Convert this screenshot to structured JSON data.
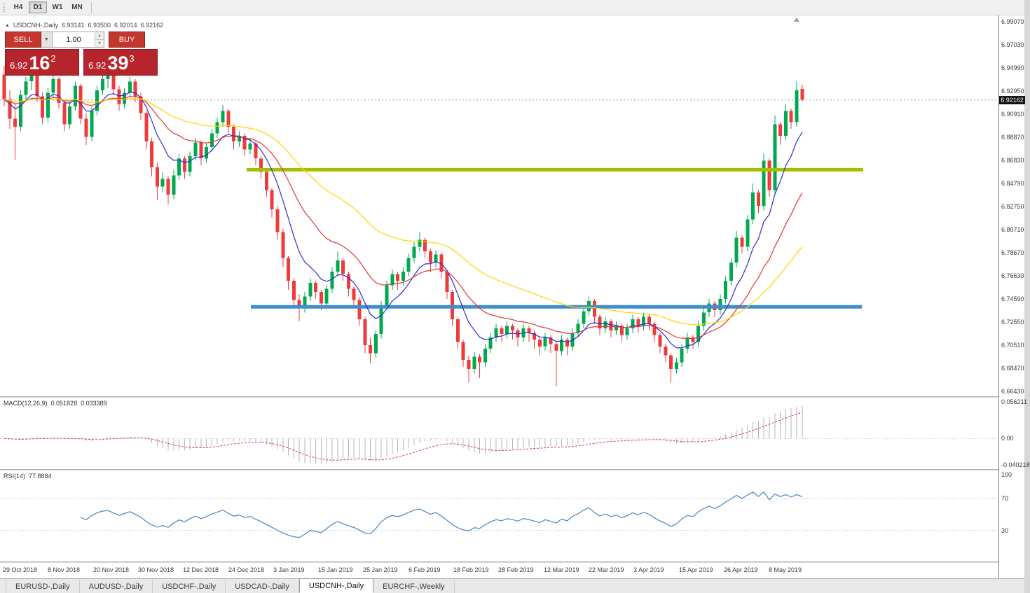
{
  "toolbar": {
    "timeframes": [
      {
        "label": "H4",
        "active": false
      },
      {
        "label": "D1",
        "active": true
      },
      {
        "label": "W1",
        "active": false
      },
      {
        "label": "MN",
        "active": false
      }
    ]
  },
  "symbol_header": {
    "collapse_icon": "▲",
    "symbol": "USDCNH-,Daily",
    "open": "6.93141",
    "high": "6.93500",
    "low": "6.92014",
    "close": "6.92162"
  },
  "trade_panel": {
    "sell_label": "SELL",
    "buy_label": "BUY",
    "volume": "1.00",
    "dropdown_icon": "▼",
    "spin_up_icon": "▲",
    "spin_down_icon": "▼",
    "bid": {
      "prefix": "6.92",
      "pips": "16",
      "sup": "2"
    },
    "ask": {
      "prefix": "6.92",
      "pips": "39",
      "sup": "3"
    }
  },
  "price_axis": {
    "labels": [
      "6.99070",
      "6.97030",
      "6.94990",
      "6.92950",
      "6.90910",
      "6.88870",
      "6.86830",
      "6.84790",
      "6.82750",
      "6.80710",
      "6.78670",
      "6.76630",
      "6.74590",
      "6.72550",
      "6.70510",
      "6.68470",
      "6.66430"
    ],
    "current_price": "6.92162"
  },
  "indicators": {
    "macd": {
      "label": "MACD(12,26,9)",
      "main_value": "0.051828",
      "signal_value": "0.033389",
      "axis_labels": [
        "0.056211",
        "0.00",
        "-0.040218"
      ],
      "scale_max": 0.056211,
      "scale_min": -0.040218,
      "histogram_color": "#b4b4b4",
      "signal_color": "#d04040"
    },
    "rsi": {
      "label": "RSI(14)",
      "value": "77.8884",
      "axis_labels": [
        "100",
        "70",
        "30"
      ],
      "levels": [
        70,
        30
      ],
      "line_color": "#4f81bd"
    }
  },
  "date_axis": [
    "29 Oct 2018",
    "8 Nov 2018",
    "20 Nov 2018",
    "30 Nov 2018",
    "12 Dec 2018",
    "24 Dec 2018",
    "3 Jan 2019",
    "15 Jan 2019",
    "25 Jan 2019",
    "6 Feb 2019",
    "18 Feb 2019",
    "28 Feb 2019",
    "12 Mar 2019",
    "22 Mar 2019",
    "3 Apr 2019",
    "15 Apr 2019",
    "26 Apr 2019",
    "8 May 2019"
  ],
  "tabs": {
    "items": [
      {
        "label": "EURUSD-,Daily",
        "active": false
      },
      {
        "label": "AUDUSD-,Daily",
        "active": false
      },
      {
        "label": "USDCHF-,Daily",
        "active": false
      },
      {
        "label": "USDCAD-,Daily",
        "active": false
      },
      {
        "label": "USDCNH-,Daily",
        "active": true
      },
      {
        "label": "EURCHF-,Weekly",
        "active": false
      }
    ]
  },
  "chart_data": {
    "type": "candlestick",
    "symbol": "USDCNH",
    "timeframe": "Daily",
    "y_range": [
      6.6643,
      6.9907
    ],
    "colors": {
      "up": "#00a94f",
      "down": "#ee3b3b"
    },
    "bid_line": 6.92162,
    "moving_averages": [
      {
        "period": 8,
        "color": "#2d2dd0"
      },
      {
        "period": 20,
        "color": "#e33636"
      },
      {
        "period": 45,
        "color": "#ffd400"
      }
    ],
    "levels": [
      {
        "name": "resistance",
        "price": 6.86,
        "color": "#a3c000",
        "width": 5,
        "x1": 352,
        "x2": 1232
      },
      {
        "name": "support",
        "price": 6.739,
        "color": "#3e8ed0",
        "width": 5,
        "x1": 358,
        "x2": 1230
      }
    ],
    "candles": [
      [
        6.944,
        6.952,
        6.916,
        6.922
      ],
      [
        6.922,
        6.93,
        6.896,
        6.905
      ],
      [
        6.905,
        6.918,
        6.869,
        6.898
      ],
      [
        6.898,
        6.93,
        6.894,
        6.926
      ],
      [
        6.926,
        6.942,
        6.92,
        6.938
      ],
      [
        6.938,
        6.948,
        6.93,
        6.944
      ],
      [
        6.944,
        6.946,
        6.92,
        6.925
      ],
      [
        6.925,
        6.928,
        6.9,
        6.906
      ],
      [
        6.906,
        6.932,
        6.902,
        6.928
      ],
      [
        6.928,
        6.944,
        6.924,
        6.94
      ],
      [
        6.94,
        6.942,
        6.914,
        6.919
      ],
      [
        6.919,
        6.922,
        6.894,
        6.9
      ],
      [
        6.9,
        6.92,
        6.896,
        6.916
      ],
      [
        6.916,
        6.938,
        6.912,
        6.934
      ],
      [
        6.934,
        6.936,
        6.9,
        6.905
      ],
      [
        6.905,
        6.91,
        6.882,
        6.889
      ],
      [
        6.889,
        6.916,
        6.885,
        6.912
      ],
      [
        6.912,
        6.934,
        6.908,
        6.93
      ],
      [
        6.93,
        6.944,
        6.926,
        6.94
      ],
      [
        6.94,
        6.946,
        6.932,
        6.943
      ],
      [
        6.943,
        6.945,
        6.926,
        6.931
      ],
      [
        6.931,
        6.934,
        6.912,
        6.918
      ],
      [
        6.918,
        6.932,
        6.914,
        6.928
      ],
      [
        6.928,
        6.942,
        6.924,
        6.938
      ],
      [
        6.938,
        6.94,
        6.92,
        6.925
      ],
      [
        6.925,
        6.928,
        6.904,
        6.91
      ],
      [
        6.91,
        6.912,
        6.878,
        6.885
      ],
      [
        6.885,
        6.888,
        6.854,
        6.862
      ],
      [
        6.862,
        6.866,
        6.833,
        6.845
      ],
      [
        6.845,
        6.858,
        6.84,
        6.852
      ],
      [
        6.852,
        6.854,
        6.83,
        6.838
      ],
      [
        6.838,
        6.86,
        6.834,
        6.855
      ],
      [
        6.855,
        6.874,
        6.851,
        6.87
      ],
      [
        6.87,
        6.872,
        6.852,
        6.858
      ],
      [
        6.858,
        6.876,
        6.854,
        6.872
      ],
      [
        6.872,
        6.888,
        6.868,
        6.884
      ],
      [
        6.884,
        6.886,
        6.864,
        6.87
      ],
      [
        6.87,
        6.884,
        6.866,
        6.88
      ],
      [
        6.88,
        6.896,
        6.876,
        6.892
      ],
      [
        6.892,
        6.906,
        6.888,
        6.902
      ],
      [
        6.902,
        6.917,
        6.898,
        6.912
      ],
      [
        6.912,
        6.914,
        6.892,
        6.898
      ],
      [
        6.898,
        6.9,
        6.878,
        6.885
      ],
      [
        6.885,
        6.894,
        6.88,
        6.89
      ],
      [
        6.89,
        6.892,
        6.872,
        6.878
      ],
      [
        6.878,
        6.888,
        6.874,
        6.883
      ],
      [
        6.883,
        6.885,
        6.864,
        6.87
      ],
      [
        6.87,
        6.872,
        6.852,
        6.858
      ],
      [
        6.858,
        6.86,
        6.836,
        6.842
      ],
      [
        6.842,
        6.844,
        6.818,
        6.825
      ],
      [
        6.825,
        6.828,
        6.798,
        6.805
      ],
      [
        6.805,
        6.808,
        6.774,
        6.782
      ],
      [
        6.782,
        6.784,
        6.754,
        6.762
      ],
      [
        6.762,
        6.764,
        6.738,
        6.745
      ],
      [
        6.745,
        6.75,
        6.726,
        6.738
      ],
      [
        6.738,
        6.752,
        6.734,
        6.748
      ],
      [
        6.748,
        6.764,
        6.744,
        6.76
      ],
      [
        6.76,
        6.762,
        6.746,
        6.752
      ],
      [
        6.752,
        6.754,
        6.736,
        6.742
      ],
      [
        6.742,
        6.758,
        6.738,
        6.755
      ],
      [
        6.755,
        6.774,
        6.751,
        6.77
      ],
      [
        6.77,
        6.788,
        6.766,
        6.78
      ],
      [
        6.78,
        6.782,
        6.762,
        6.768
      ],
      [
        6.768,
        6.77,
        6.748,
        6.755
      ],
      [
        6.755,
        6.757,
        6.738,
        6.745
      ],
      [
        6.745,
        6.747,
        6.722,
        6.728
      ],
      [
        6.728,
        6.73,
        6.698,
        6.705
      ],
      [
        6.705,
        6.712,
        6.689,
        6.698
      ],
      [
        6.698,
        6.718,
        6.694,
        6.715
      ],
      [
        6.715,
        6.744,
        6.711,
        6.74
      ],
      [
        6.74,
        6.762,
        6.736,
        6.758
      ],
      [
        6.758,
        6.772,
        6.754,
        6.768
      ],
      [
        6.768,
        6.77,
        6.754,
        6.762
      ],
      [
        6.762,
        6.774,
        6.758,
        6.77
      ],
      [
        6.77,
        6.786,
        6.766,
        6.782
      ],
      [
        6.782,
        6.796,
        6.778,
        6.792
      ],
      [
        6.792,
        6.805,
        6.788,
        6.798
      ],
      [
        6.798,
        6.8,
        6.782,
        6.788
      ],
      [
        6.788,
        6.79,
        6.77,
        6.778
      ],
      [
        6.778,
        6.789,
        6.774,
        6.785
      ],
      [
        6.785,
        6.787,
        6.764,
        6.77
      ],
      [
        6.77,
        6.772,
        6.746,
        6.752
      ],
      [
        6.752,
        6.754,
        6.722,
        6.728
      ],
      [
        6.728,
        6.73,
        6.702,
        6.708
      ],
      [
        6.708,
        6.71,
        6.686,
        6.692
      ],
      [
        6.692,
        6.696,
        6.672,
        6.684
      ],
      [
        6.684,
        6.699,
        6.68,
        6.695
      ],
      [
        6.695,
        6.697,
        6.676,
        6.69
      ],
      [
        6.69,
        6.706,
        6.686,
        6.702
      ],
      [
        6.702,
        6.716,
        6.698,
        6.712
      ],
      [
        6.712,
        6.724,
        6.708,
        6.72
      ],
      [
        6.72,
        6.722,
        6.708,
        6.715
      ],
      [
        6.715,
        6.726,
        6.711,
        6.722
      ],
      [
        6.722,
        6.724,
        6.71,
        6.718
      ],
      [
        6.718,
        6.72,
        6.704,
        6.712
      ],
      [
        6.712,
        6.724,
        6.708,
        6.72
      ],
      [
        6.72,
        6.722,
        6.708,
        6.716
      ],
      [
        6.716,
        6.718,
        6.702,
        6.71
      ],
      [
        6.71,
        6.712,
        6.696,
        6.704
      ],
      [
        6.704,
        6.716,
        6.7,
        6.712
      ],
      [
        6.712,
        6.714,
        6.698,
        6.706
      ],
      [
        6.706,
        6.708,
        6.669,
        6.7
      ],
      [
        6.7,
        6.714,
        6.696,
        6.71
      ],
      [
        6.71,
        6.712,
        6.696,
        6.704
      ],
      [
        6.704,
        6.72,
        6.7,
        6.716
      ],
      [
        6.716,
        6.728,
        6.712,
        6.724
      ],
      [
        6.724,
        6.739,
        6.72,
        6.735
      ],
      [
        6.735,
        6.748,
        6.731,
        6.744
      ],
      [
        6.744,
        6.746,
        6.724,
        6.73
      ],
      [
        6.73,
        6.732,
        6.714,
        6.72
      ],
      [
        6.72,
        6.73,
        6.716,
        6.726
      ],
      [
        6.726,
        6.728,
        6.712,
        6.718
      ],
      [
        6.718,
        6.726,
        6.714,
        6.722
      ],
      [
        6.722,
        6.724,
        6.708,
        6.714
      ],
      [
        6.714,
        6.724,
        6.71,
        6.72
      ],
      [
        6.72,
        6.732,
        6.716,
        6.728
      ],
      [
        6.728,
        6.73,
        6.716,
        6.722
      ],
      [
        6.722,
        6.734,
        6.718,
        6.73
      ],
      [
        6.73,
        6.732,
        6.718,
        6.724
      ],
      [
        6.724,
        6.726,
        6.708,
        6.714
      ],
      [
        6.714,
        6.716,
        6.698,
        6.704
      ],
      [
        6.704,
        6.706,
        6.69,
        6.696
      ],
      [
        6.696,
        6.698,
        6.672,
        6.684
      ],
      [
        6.684,
        6.694,
        6.68,
        6.69
      ],
      [
        6.69,
        6.706,
        6.686,
        6.702
      ],
      [
        6.702,
        6.716,
        6.698,
        6.712
      ],
      [
        6.712,
        6.714,
        6.702,
        6.708
      ],
      [
        6.708,
        6.726,
        6.704,
        6.722
      ],
      [
        6.722,
        6.738,
        6.718,
        6.734
      ],
      [
        6.734,
        6.746,
        6.73,
        6.742
      ],
      [
        6.742,
        6.744,
        6.73,
        6.736
      ],
      [
        6.736,
        6.75,
        6.732,
        6.746
      ],
      [
        6.746,
        6.766,
        6.742,
        6.762
      ],
      [
        6.762,
        6.782,
        6.758,
        6.778
      ],
      [
        6.778,
        6.806,
        6.774,
        6.8
      ],
      [
        6.8,
        6.802,
        6.786,
        6.792
      ],
      [
        6.792,
        6.82,
        6.788,
        6.816
      ],
      [
        6.816,
        6.848,
        6.812,
        6.84
      ],
      [
        6.84,
        6.842,
        6.822,
        6.828
      ],
      [
        6.828,
        6.874,
        6.824,
        6.868
      ],
      [
        6.868,
        6.87,
        6.836,
        6.842
      ],
      [
        6.842,
        6.908,
        6.838,
        6.9
      ],
      [
        6.9,
        6.902,
        6.882,
        6.89
      ],
      [
        6.89,
        6.918,
        6.886,
        6.912
      ],
      [
        6.912,
        6.914,
        6.896,
        6.902
      ],
      [
        6.902,
        6.938,
        6.898,
        6.93
      ],
      [
        6.93141,
        6.935,
        6.92014,
        6.92162
      ]
    ]
  }
}
